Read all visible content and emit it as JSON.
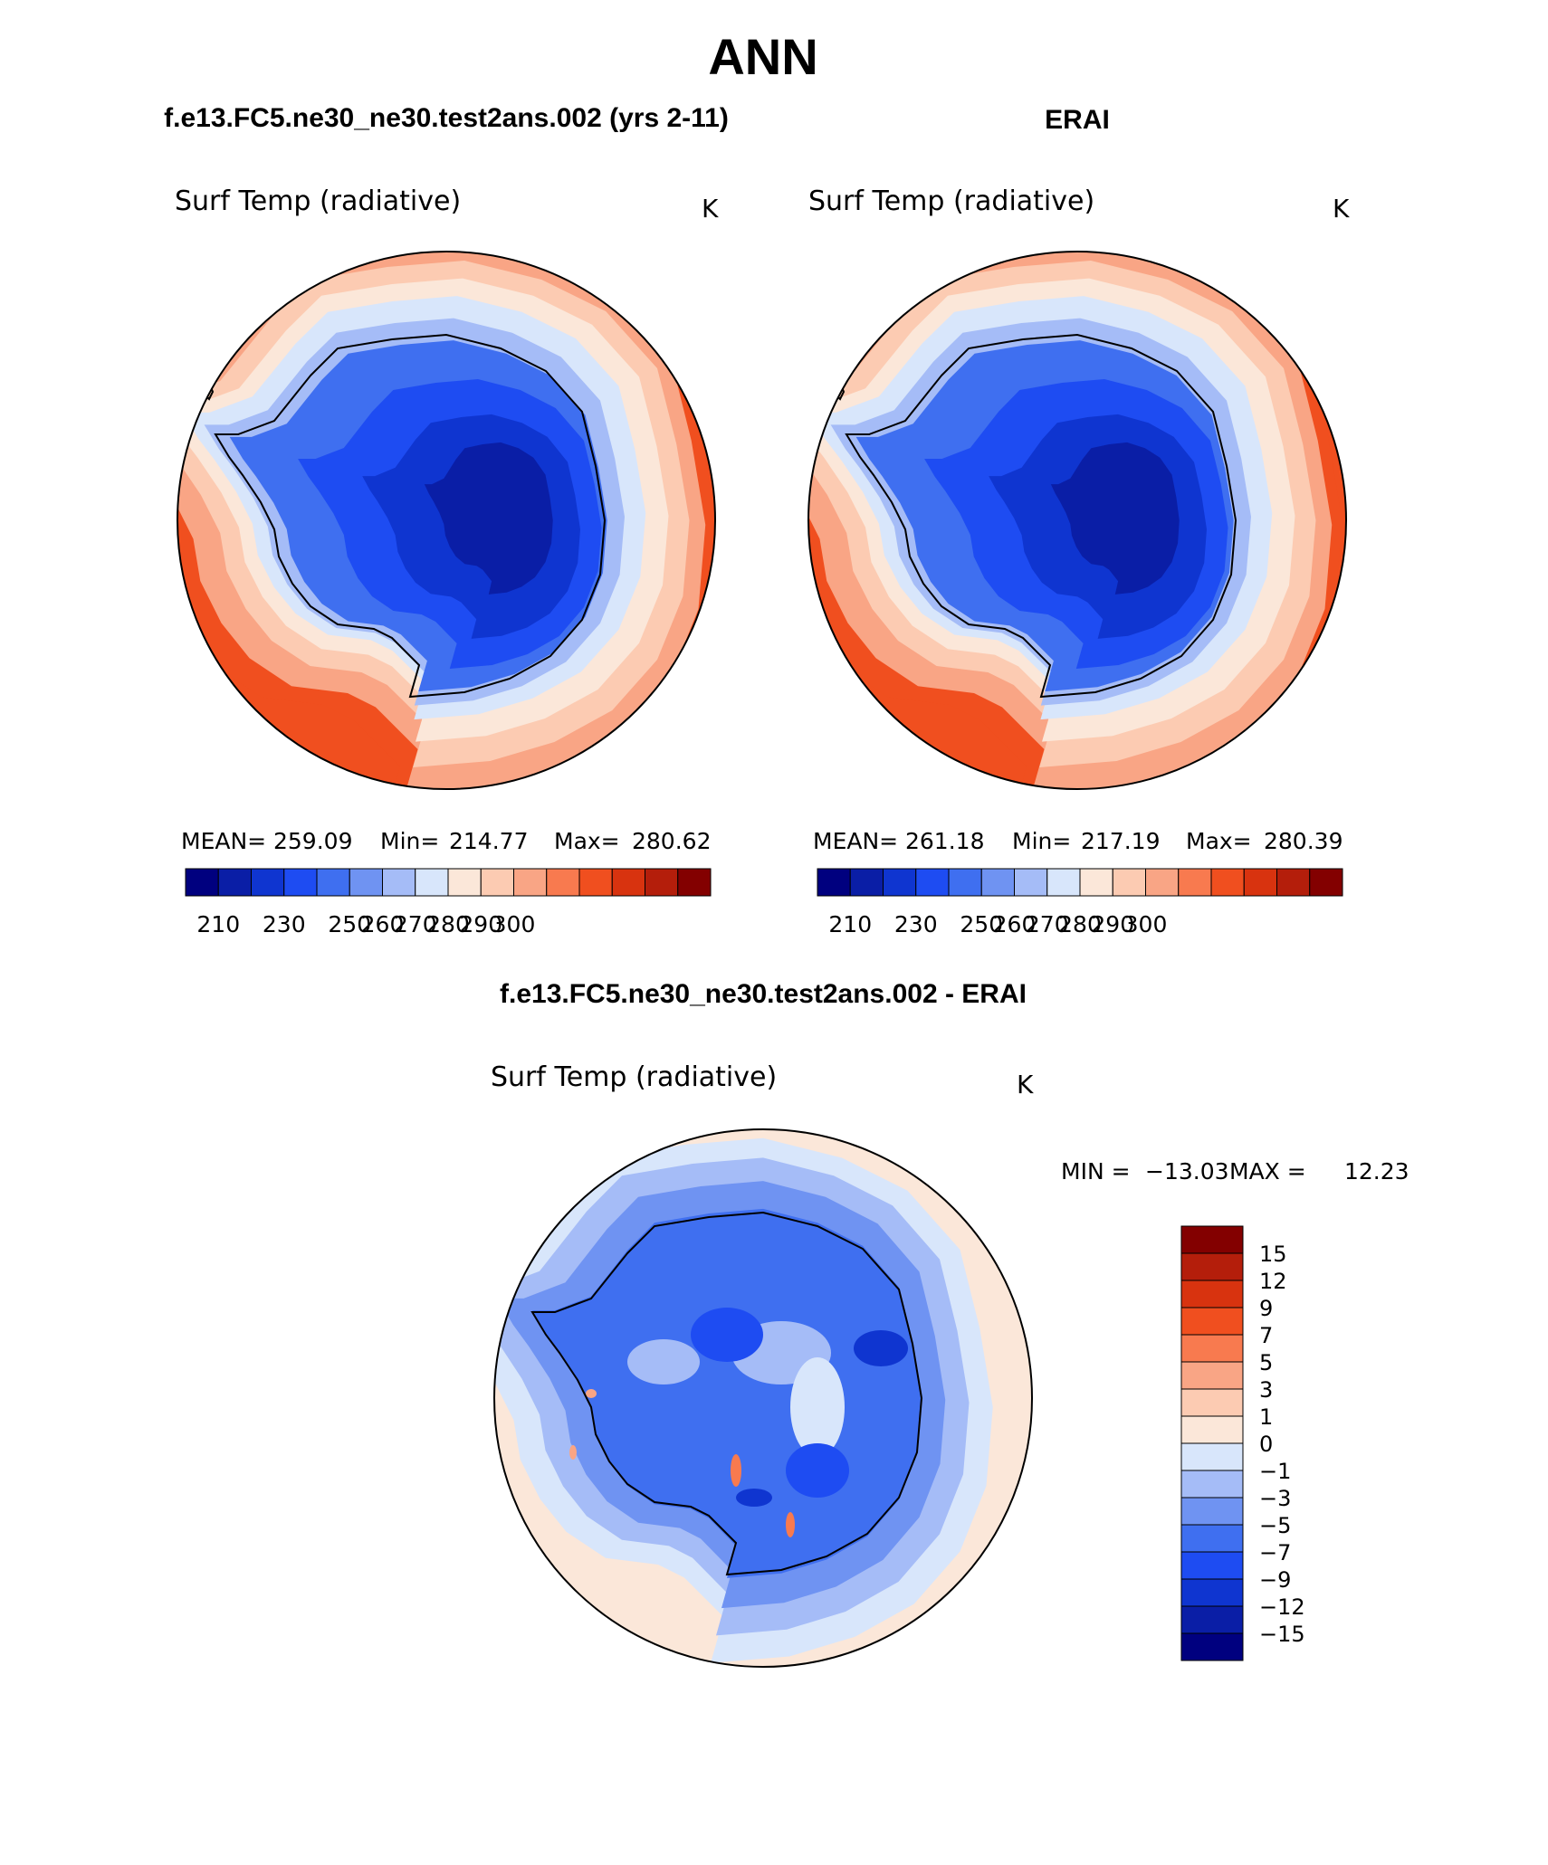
{
  "figure": {
    "main_title": "ANN",
    "panel1_title": "f.e13.FC5.ne30_ne30.test2ans.002 (yrs 2-11)",
    "panel2_title": "ERAI",
    "diff_title": "f.e13.FC5.ne30_ne30.test2ans.002 - ERAI"
  },
  "palette": {
    "abs_colors": [
      "#00007f",
      "#0a1ea6",
      "#0f35d0",
      "#1e4cf2",
      "#3f6ff0",
      "#6f93f2",
      "#a5bcf7",
      "#d8e6fb",
      "#fbe7d9",
      "#fccbb2",
      "#f9a585",
      "#f87a4f",
      "#f04f1f",
      "#d8330f",
      "#b41e0b",
      "#830000"
    ],
    "diff_colors": [
      "#00007f",
      "#0a1ea6",
      "#0f35d0",
      "#1e4cf2",
      "#3f6ff0",
      "#6f93f2",
      "#a5bcf7",
      "#d8e6fb",
      "#fbe7d9",
      "#fccbb2",
      "#f9a585",
      "#f87a4f",
      "#f04f1f",
      "#d8330f",
      "#b41e0b",
      "#830000"
    ],
    "coast": "#000000"
  },
  "chart_data": [
    {
      "type": "heatmap",
      "projection": "south-polar-stereographic",
      "title": "f.e13.FC5.ne30_ne30.test2ans.002 (yrs 2-11)",
      "variable": "Surf Temp (radiative)",
      "units": "K",
      "stats": {
        "mean_label": "MEAN=",
        "mean": "259.09",
        "min_label": "Min=",
        "min": "214.77",
        "max_label": "Max=",
        "max": "280.62"
      },
      "contour_levels": [
        210,
        220,
        230,
        240,
        250,
        255,
        260,
        265,
        270,
        275,
        280,
        285,
        290,
        295,
        300
      ],
      "colorbar_labels": [
        "210",
        "230",
        "250",
        "260",
        "270",
        "280",
        "290",
        "300"
      ],
      "colorbar_orientation": "horizontal"
    },
    {
      "type": "heatmap",
      "projection": "south-polar-stereographic",
      "title": "ERAI",
      "variable": "Surf Temp (radiative)",
      "units": "K",
      "stats": {
        "mean_label": "MEAN=",
        "mean": "261.18",
        "min_label": "Min=",
        "min": "217.19",
        "max_label": "Max=",
        "max": "280.39"
      },
      "contour_levels": [
        210,
        220,
        230,
        240,
        250,
        255,
        260,
        265,
        270,
        275,
        280,
        285,
        290,
        295,
        300
      ],
      "colorbar_labels": [
        "210",
        "230",
        "250",
        "260",
        "270",
        "280",
        "290",
        "300"
      ],
      "colorbar_orientation": "horizontal"
    },
    {
      "type": "heatmap",
      "projection": "south-polar-stereographic",
      "title": "f.e13.FC5.ne30_ne30.test2ans.002 - ERAI",
      "variable": "Surf Temp (radiative)",
      "units": "K",
      "stats": {
        "min_label": "MIN =",
        "min": "−13.03",
        "max_label": "MAX =",
        "max": "12.23"
      },
      "contour_levels": [
        "15",
        "12",
        "9",
        "7",
        "5",
        "3",
        "1",
        "0",
        "−1",
        "−3",
        "−5",
        "−7",
        "−9",
        "−12",
        "−15"
      ],
      "colorbar_orientation": "vertical"
    }
  ]
}
